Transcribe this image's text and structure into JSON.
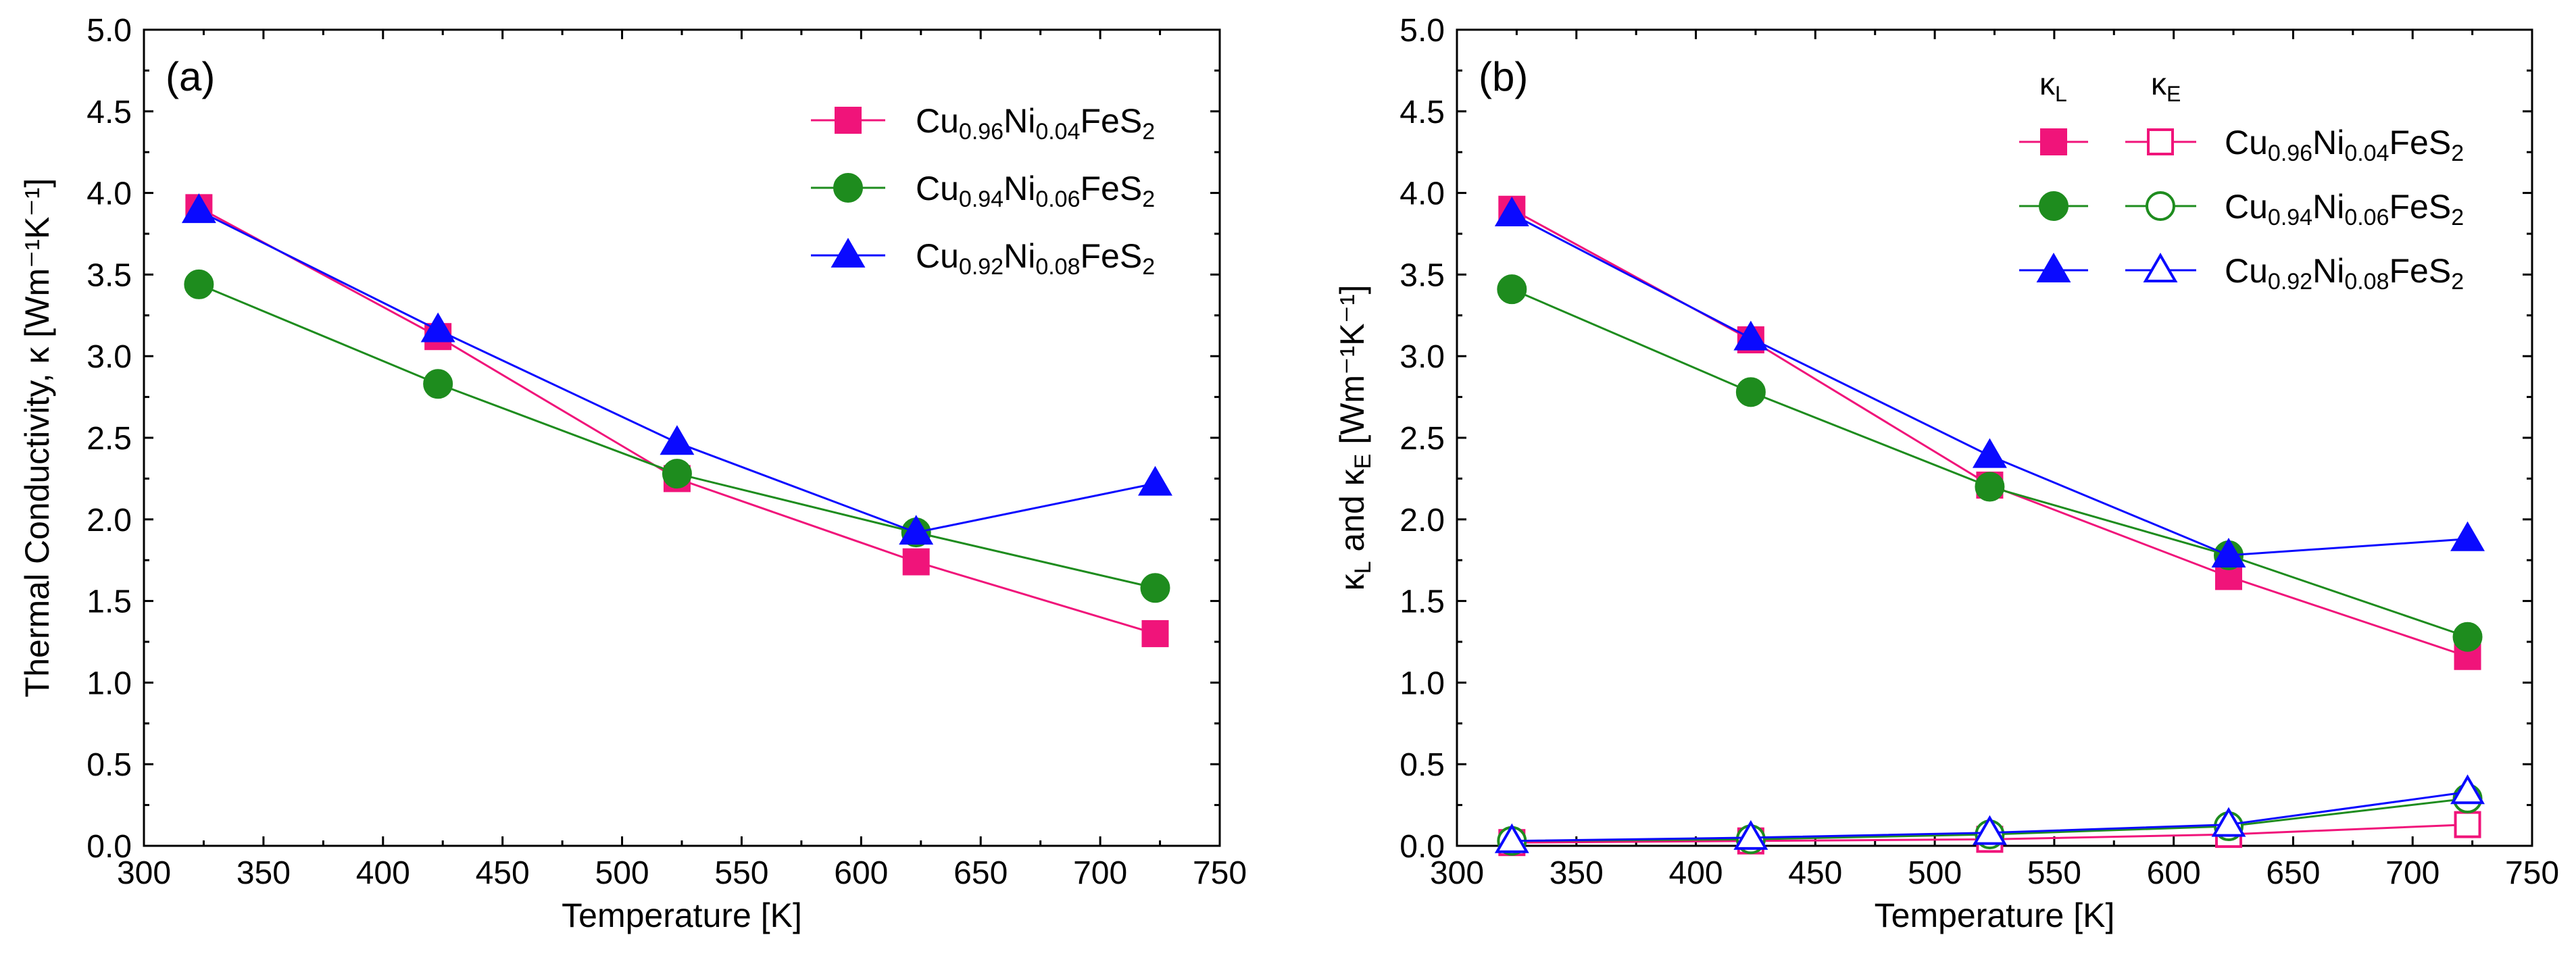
{
  "chart_data": [
    {
      "type": "line",
      "panel_label": "(a)",
      "xlabel": "Temperature [K]",
      "ylabel": "Thermal Conductivity, κ [Wm⁻¹K⁻¹]",
      "xlim": [
        300,
        750
      ],
      "ylim": [
        0.0,
        5.0
      ],
      "xticks": [
        300,
        350,
        400,
        450,
        500,
        550,
        600,
        650,
        700,
        750
      ],
      "yticks": [
        "0.0",
        "0.5",
        "1.0",
        "1.5",
        "2.0",
        "2.5",
        "3.0",
        "3.5",
        "4.0",
        "4.5",
        "5.0"
      ],
      "legend_position": "top-right",
      "x": [
        323,
        423,
        523,
        623,
        723
      ],
      "series": [
        {
          "name": "Cu0.96Ni0.04FeS2",
          "base": "Cu",
          "sub1": "0.96",
          "mid": "Ni",
          "sub2": "0.04",
          "tail": "FeS",
          "sub3": "2",
          "color": "#f0147a",
          "marker": "square",
          "filled": true,
          "values": [
            3.91,
            3.12,
            2.25,
            1.74,
            1.3
          ]
        },
        {
          "name": "Cu0.94Ni0.06FeS2",
          "base": "Cu",
          "sub1": "0.94",
          "mid": "Ni",
          "sub2": "0.06",
          "tail": "FeS",
          "sub3": "2",
          "color": "#1e8c1e",
          "marker": "circle",
          "filled": true,
          "values": [
            3.44,
            2.83,
            2.28,
            1.92,
            1.58
          ]
        },
        {
          "name": "Cu0.92Ni0.08FeS2",
          "base": "Cu",
          "sub1": "0.92",
          "mid": "Ni",
          "sub2": "0.08",
          "tail": "FeS",
          "sub3": "2",
          "color": "#0a0aff",
          "marker": "triangle",
          "filled": true,
          "values": [
            3.89,
            3.16,
            2.47,
            1.92,
            2.22
          ]
        }
      ]
    },
    {
      "type": "line",
      "panel_label": "(b)",
      "xlabel": "Temperature [K]",
      "ylabel": "κL and κE [Wm⁻¹K⁻¹]",
      "ylabel_parts": {
        "k": "κ",
        "subL": "L",
        "and": " and ",
        "subE": "E",
        "unit": " [Wm⁻¹K⁻¹]"
      },
      "xlim": [
        300,
        750
      ],
      "ylim": [
        0.0,
        5.0
      ],
      "xticks": [
        300,
        350,
        400,
        450,
        500,
        550,
        600,
        650,
        700,
        750
      ],
      "yticks": [
        "0.0",
        "0.5",
        "1.0",
        "1.5",
        "2.0",
        "2.5",
        "3.0",
        "3.5",
        "4.0",
        "4.5",
        "5.0"
      ],
      "legend_position": "top-right",
      "legend_headers": {
        "k": "κ",
        "L": "L",
        "E": "E"
      },
      "x": [
        323,
        423,
        523,
        623,
        723
      ],
      "series": [
        {
          "name": "Cu0.96Ni0.04FeS2",
          "base": "Cu",
          "sub1": "0.96",
          "mid": "Ni",
          "sub2": "0.04",
          "tail": "FeS",
          "sub3": "2",
          "color": "#f0147a",
          "marker": "square",
          "kL": [
            3.9,
            3.1,
            2.21,
            1.65,
            1.16
          ],
          "kE": [
            0.02,
            0.03,
            0.04,
            0.07,
            0.13
          ]
        },
        {
          "name": "Cu0.94Ni0.06FeS2",
          "base": "Cu",
          "sub1": "0.94",
          "mid": "Ni",
          "sub2": "0.06",
          "tail": "FeS",
          "sub3": "2",
          "color": "#1e8c1e",
          "marker": "circle",
          "kL": [
            3.41,
            2.78,
            2.2,
            1.78,
            1.28
          ],
          "kE": [
            0.03,
            0.04,
            0.07,
            0.12,
            0.29
          ]
        },
        {
          "name": "Cu0.92Ni0.08FeS2",
          "base": "Cu",
          "sub1": "0.92",
          "mid": "Ni",
          "sub2": "0.08",
          "tail": "FeS",
          "sub3": "2",
          "color": "#0a0aff",
          "marker": "triangle",
          "kL": [
            3.87,
            3.11,
            2.39,
            1.78,
            1.88
          ],
          "kE": [
            0.03,
            0.05,
            0.08,
            0.13,
            0.33
          ]
        }
      ]
    }
  ]
}
